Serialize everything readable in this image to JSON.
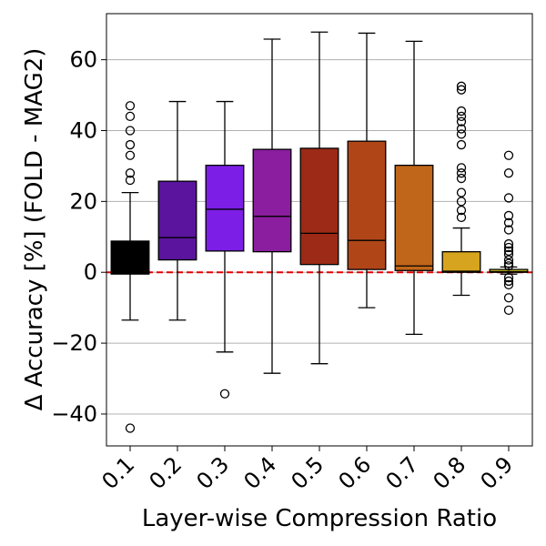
{
  "chart_data": {
    "type": "box",
    "title": "",
    "xlabel": "Layer-wise Compression Ratio",
    "ylabel": "Δ Accuracy [%] (FOLD - MAG2)",
    "categories": [
      "0.1",
      "0.2",
      "0.3",
      "0.4",
      "0.5",
      "0.6",
      "0.7",
      "0.8",
      "0.9"
    ],
    "ylim": [
      -49,
      73
    ],
    "yticks": [
      -40,
      -20,
      0,
      20,
      40,
      60
    ],
    "ytick_labels": [
      "−40",
      "−20",
      "0",
      "20",
      "40",
      "60"
    ],
    "grid": "horizontal",
    "reference_line": {
      "y": 0,
      "style": "dashed",
      "color": "#e00000"
    },
    "boxes": [
      {
        "category": "0.1",
        "color": "#000000",
        "whisker_low": -13.5,
        "q1": -0.5,
        "median": 0.0,
        "q3": 8.8,
        "whisker_high": 22.5,
        "outliers": [
          -44,
          26,
          28,
          33,
          36,
          40,
          44,
          47
        ]
      },
      {
        "category": "0.2",
        "color": "#5b149d",
        "whisker_low": -13.5,
        "q1": 3.5,
        "median": 9.8,
        "q3": 25.7,
        "whisker_high": 48.2,
        "outliers": []
      },
      {
        "category": "0.3",
        "color": "#7c1ee6",
        "whisker_low": -22.5,
        "q1": 6.0,
        "median": 17.8,
        "q3": 30.2,
        "whisker_high": 48.2,
        "outliers": [
          -34.3
        ]
      },
      {
        "category": "0.4",
        "color": "#8a1e9e",
        "whisker_low": -28.5,
        "q1": 5.8,
        "median": 15.8,
        "q3": 34.7,
        "whisker_high": 65.8,
        "outliers": []
      },
      {
        "category": "0.5",
        "color": "#9c2a16",
        "whisker_low": -25.8,
        "q1": 2.2,
        "median": 11.0,
        "q3": 35.0,
        "whisker_high": 67.8,
        "outliers": []
      },
      {
        "category": "0.6",
        "color": "#b04618",
        "whisker_low": -10.0,
        "q1": 0.8,
        "median": 9.0,
        "q3": 37.0,
        "whisker_high": 67.5,
        "outliers": []
      },
      {
        "category": "0.7",
        "color": "#c0661a",
        "whisker_low": -17.5,
        "q1": 0.5,
        "median": 1.8,
        "q3": 30.2,
        "whisker_high": 65.2,
        "outliers": []
      },
      {
        "category": "0.8",
        "color": "#d6a41e",
        "whisker_low": -6.5,
        "q1": 0.0,
        "median": 0.3,
        "q3": 5.8,
        "whisker_high": 12.5,
        "outliers": [
          15.5,
          17.5,
          20,
          22.5,
          26.5,
          28,
          29.5,
          36,
          39,
          40.5,
          42.5,
          44,
          45.5,
          51.5,
          52.5
        ]
      },
      {
        "category": "0.9",
        "color": "#e8d820",
        "whisker_low": -0.5,
        "q1": 0.0,
        "median": 0.2,
        "q3": 0.8,
        "whisker_high": 1.5,
        "outliers": [
          -10.7,
          -7.2,
          -3.5,
          -2.5,
          -1.5,
          1.8,
          2.5,
          3.5,
          5,
          6,
          7,
          8,
          12,
          14,
          16,
          21,
          28,
          33
        ]
      }
    ]
  }
}
